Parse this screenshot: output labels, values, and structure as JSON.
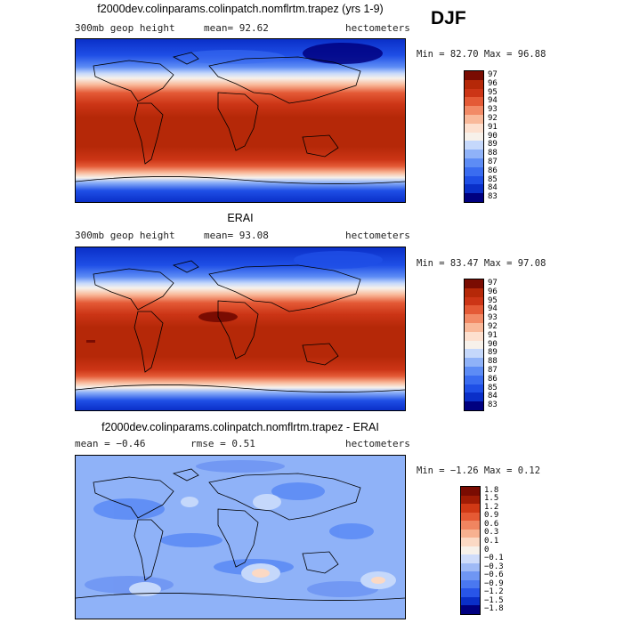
{
  "season": "DJF",
  "colors": {
    "abs": [
      "#000080",
      "#0a2fc8",
      "#1f4fe6",
      "#3a6cf0",
      "#5d8cf5",
      "#8fb2f8",
      "#c5d8fb",
      "#f7f1ea",
      "#fde0cf",
      "#f9b99a",
      "#f28a66",
      "#e45a36",
      "#cc3516",
      "#b52808",
      "#7a0c02"
    ],
    "diff": [
      "#000080",
      "#0a2fc8",
      "#2855e8",
      "#4a78f0",
      "#6f96f3",
      "#9fbaf6",
      "#cfdcfa",
      "#f7f1ea",
      "#fbd9c4",
      "#f7b190",
      "#f08560",
      "#e55a34",
      "#d03915",
      "#a01c05",
      "#7a0c02"
    ]
  },
  "panels": [
    {
      "title": "f2000dev.colinparams.colinpatch.nomflrtm.trapez (yrs 1-9)",
      "left": "300mb geop height",
      "mid": "mean=   92.62",
      "right": "hectometers",
      "minmax": "Min =  82.70 Max =  96.88",
      "levels": [
        "97",
        "96",
        "95",
        "94",
        "93",
        "92",
        "91",
        "90",
        "89",
        "88",
        "87",
        "86",
        "85",
        "84",
        "83"
      ]
    },
    {
      "title": "ERAI",
      "left": "300mb geop height",
      "mid": "mean=  93.08",
      "right": "hectometers",
      "minmax": "Min =  83.47 Max =  97.08",
      "levels": [
        "97",
        "96",
        "95",
        "94",
        "93",
        "92",
        "91",
        "90",
        "89",
        "88",
        "87",
        "86",
        "85",
        "84",
        "83"
      ]
    },
    {
      "title": "f2000dev.colinparams.colinpatch.nomflrtm.trapez - ERAI",
      "left": "mean =  −0.46",
      "mid": "rmse =   0.51",
      "right": "hectometers",
      "minmax": "Min =  −1.26 Max =   0.12",
      "levels": [
        "1.8",
        "1.5",
        "1.2",
        "0.9",
        "0.6",
        "0.3",
        "0.1",
        "0",
        "−0.1",
        "−0.3",
        "−0.6",
        "−0.9",
        "−1.2",
        "−1.5",
        "−1.8"
      ]
    }
  ]
}
